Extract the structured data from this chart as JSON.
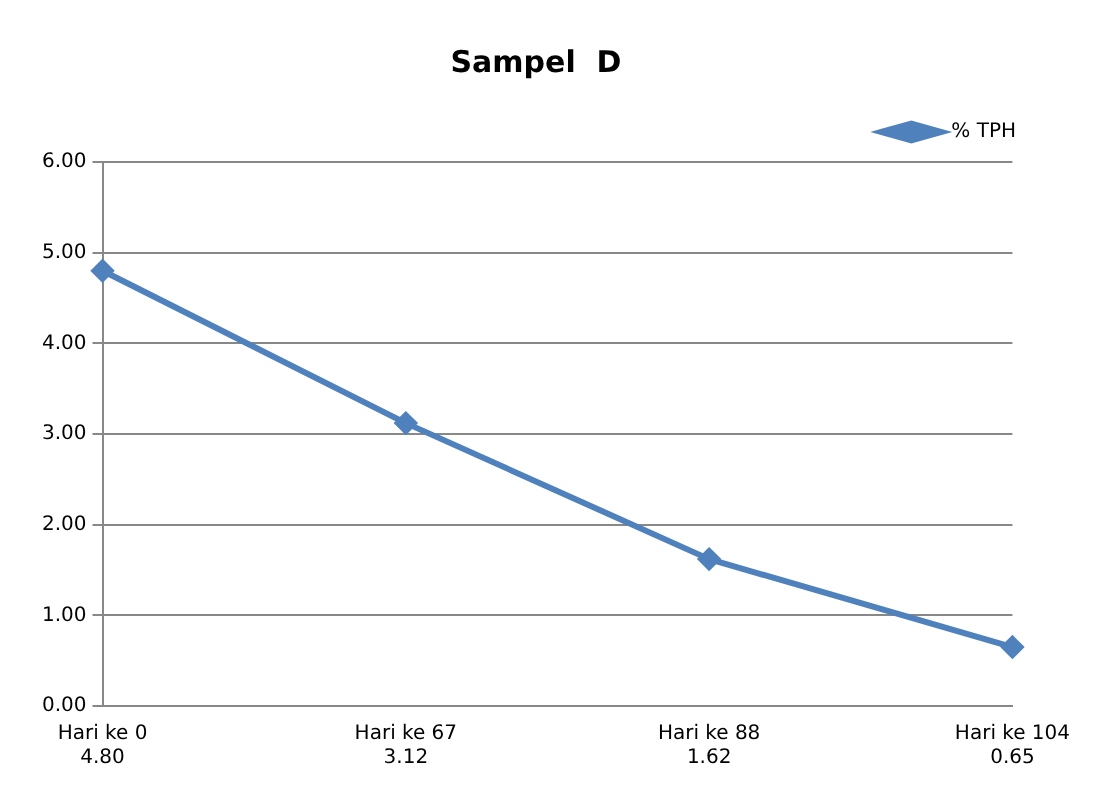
{
  "chart_data": {
    "type": "line",
    "title": "Sampel  D",
    "categories": [
      "Hari ke 0",
      "Hari ke 67",
      "Hari ke 88",
      "Hari ke 104"
    ],
    "series": [
      {
        "name": "% TPH",
        "color": "#4f81bd",
        "values": [
          4.8,
          3.12,
          1.62,
          0.65
        ],
        "value_labels": [
          "4.80",
          "3.12",
          "1.62",
          "0.65"
        ]
      }
    ],
    "ylim": [
      0,
      6
    ],
    "yticks": [
      {
        "value": 0,
        "label": "0.00"
      },
      {
        "value": 1,
        "label": "1.00"
      },
      {
        "value": 2,
        "label": "2.00"
      },
      {
        "value": 3,
        "label": "3.00"
      },
      {
        "value": 4,
        "label": "4.00"
      },
      {
        "value": 5,
        "label": "5.00"
      },
      {
        "value": 6,
        "label": "6.00"
      }
    ],
    "grid": "y",
    "legend": "top right",
    "marker": "diamond",
    "line_style": "solid"
  }
}
